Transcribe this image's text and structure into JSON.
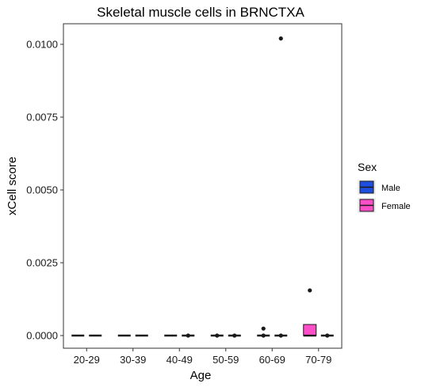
{
  "chart_data": {
    "type": "boxplot",
    "title": "Skeletal muscle cells in BRNCTXA",
    "xlabel": "Age",
    "ylabel": "xCell score",
    "categories": [
      "20-29",
      "30-39",
      "40-49",
      "50-59",
      "60-69",
      "70-79"
    ],
    "yticks": [
      "0.0000",
      "0.0025",
      "0.0050",
      "0.0075",
      "0.0100"
    ],
    "ylim": [
      -0.0005,
      0.0107
    ],
    "grid": false,
    "legend": {
      "title": "Sex",
      "placement": "right",
      "entries": [
        {
          "name": "Male",
          "color": "#1f4fe0"
        },
        {
          "name": "Female",
          "color": "#ff4fc8"
        }
      ]
    },
    "series": [
      {
        "name": "Male",
        "color": "#1f4fe0",
        "boxes": [
          {
            "q1": 0,
            "median": 0,
            "q3": 0,
            "whisker_low": 0,
            "whisker_high": 0,
            "outliers": []
          },
          {
            "q1": 0,
            "median": 0,
            "q3": 0,
            "whisker_low": 0,
            "whisker_high": 0,
            "outliers": []
          },
          {
            "q1": 0,
            "median": 0,
            "q3": 0,
            "whisker_low": 0,
            "whisker_high": 0,
            "outliers": []
          },
          {
            "q1": 0,
            "median": 0,
            "q3": 0,
            "whisker_low": 0,
            "whisker_high": 0,
            "outliers": [
              0.0
            ]
          },
          {
            "q1": 0,
            "median": 0,
            "q3": 0,
            "whisker_low": 0,
            "whisker_high": 0,
            "outliers": [
              0.00024,
              0.0
            ]
          },
          {
            "q1": 0,
            "median": 0,
            "q3": 0,
            "whisker_low": 0,
            "whisker_high": 0,
            "outliers": [
              0.00155
            ]
          }
        ]
      },
      {
        "name": "Female",
        "color": "#ff4fc8",
        "boxes": [
          {
            "q1": 0,
            "median": 0,
            "q3": 0,
            "whisker_low": 0,
            "whisker_high": 0,
            "outliers": []
          },
          {
            "q1": 0,
            "median": 0,
            "q3": 0,
            "whisker_low": 0,
            "whisker_high": 0,
            "outliers": []
          },
          {
            "q1": 0,
            "median": 0,
            "q3": 0,
            "whisker_low": 0,
            "whisker_high": 0,
            "outliers": [
              0.0
            ]
          },
          {
            "q1": 0,
            "median": 0,
            "q3": 0,
            "whisker_low": 0,
            "whisker_high": 0,
            "outliers": [
              0.0
            ]
          },
          {
            "q1": 0,
            "median": 0,
            "q3": 0,
            "whisker_low": 0,
            "whisker_high": 0,
            "outliers": [
              0.0102,
              0.0
            ]
          },
          {
            "q1": 0,
            "median": 0,
            "q3": 0,
            "whisker_low": 0,
            "whisker_high": 0,
            "outliers": [
              0.0
            ]
          }
        ]
      }
    ],
    "overrides_note_free": true
  }
}
